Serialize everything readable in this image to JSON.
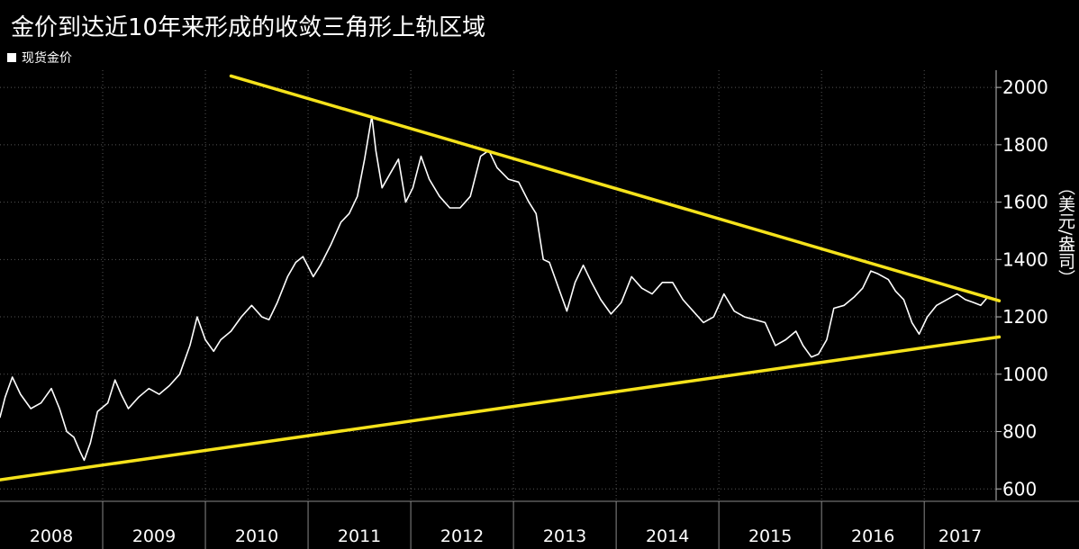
{
  "title": "金价到达近10年来形成的收敛三角形上轨区域",
  "legend": {
    "label": "现货金价",
    "color": "#ffffff"
  },
  "colors": {
    "background": "#000000",
    "price_line": "#ffffff",
    "trend_line": "#f5e21b",
    "grid": "#555555"
  },
  "chart_data": {
    "type": "line",
    "title": "金价到达近10年来形成的收敛三角形上轨区域",
    "xlabel": "",
    "ylabel": "（美元/盎司）",
    "ylim": [
      560,
      2060
    ],
    "xlim": [
      2008.0,
      2017.7
    ],
    "yticks": [
      600,
      800,
      1000,
      1200,
      1400,
      1600,
      1800,
      2000
    ],
    "xcategories": [
      "2008",
      "2009",
      "2010",
      "2011",
      "2012",
      "2013",
      "2014",
      "2015",
      "2016",
      "2017"
    ],
    "grid": true,
    "legend_position": "top-left",
    "series": [
      {
        "name": "现货金价",
        "color": "#ffffff",
        "points": [
          [
            2008.0,
            850
          ],
          [
            2008.05,
            920
          ],
          [
            2008.12,
            990
          ],
          [
            2008.2,
            930
          ],
          [
            2008.3,
            880
          ],
          [
            2008.4,
            900
          ],
          [
            2008.5,
            950
          ],
          [
            2008.58,
            880
          ],
          [
            2008.65,
            800
          ],
          [
            2008.72,
            780
          ],
          [
            2008.78,
            730
          ],
          [
            2008.82,
            700
          ],
          [
            2008.88,
            760
          ],
          [
            2008.95,
            870
          ],
          [
            2009.05,
            900
          ],
          [
            2009.12,
            980
          ],
          [
            2009.18,
            930
          ],
          [
            2009.25,
            880
          ],
          [
            2009.35,
            920
          ],
          [
            2009.45,
            950
          ],
          [
            2009.55,
            930
          ],
          [
            2009.65,
            960
          ],
          [
            2009.75,
            1000
          ],
          [
            2009.85,
            1100
          ],
          [
            2009.92,
            1200
          ],
          [
            2010.0,
            1120
          ],
          [
            2010.08,
            1080
          ],
          [
            2010.15,
            1120
          ],
          [
            2010.25,
            1150
          ],
          [
            2010.35,
            1200
          ],
          [
            2010.45,
            1240
          ],
          [
            2010.55,
            1200
          ],
          [
            2010.62,
            1190
          ],
          [
            2010.7,
            1250
          ],
          [
            2010.8,
            1340
          ],
          [
            2010.88,
            1390
          ],
          [
            2010.95,
            1410
          ],
          [
            2011.05,
            1340
          ],
          [
            2011.12,
            1380
          ],
          [
            2011.22,
            1450
          ],
          [
            2011.32,
            1530
          ],
          [
            2011.4,
            1560
          ],
          [
            2011.48,
            1620
          ],
          [
            2011.55,
            1750
          ],
          [
            2011.62,
            1900
          ],
          [
            2011.66,
            1780
          ],
          [
            2011.72,
            1650
          ],
          [
            2011.8,
            1700
          ],
          [
            2011.88,
            1750
          ],
          [
            2011.95,
            1600
          ],
          [
            2012.02,
            1650
          ],
          [
            2012.1,
            1760
          ],
          [
            2012.18,
            1680
          ],
          [
            2012.28,
            1620
          ],
          [
            2012.38,
            1580
          ],
          [
            2012.48,
            1580
          ],
          [
            2012.58,
            1620
          ],
          [
            2012.68,
            1760
          ],
          [
            2012.76,
            1780
          ],
          [
            2012.84,
            1720
          ],
          [
            2012.95,
            1680
          ],
          [
            2013.05,
            1670
          ],
          [
            2013.15,
            1600
          ],
          [
            2013.22,
            1560
          ],
          [
            2013.29,
            1400
          ],
          [
            2013.35,
            1390
          ],
          [
            2013.45,
            1290
          ],
          [
            2013.52,
            1220
          ],
          [
            2013.6,
            1320
          ],
          [
            2013.68,
            1380
          ],
          [
            2013.76,
            1320
          ],
          [
            2013.85,
            1260
          ],
          [
            2013.95,
            1210
          ],
          [
            2014.05,
            1250
          ],
          [
            2014.15,
            1340
          ],
          [
            2014.25,
            1300
          ],
          [
            2014.35,
            1280
          ],
          [
            2014.45,
            1320
          ],
          [
            2014.55,
            1320
          ],
          [
            2014.65,
            1260
          ],
          [
            2014.75,
            1220
          ],
          [
            2014.85,
            1180
          ],
          [
            2014.95,
            1200
          ],
          [
            2015.05,
            1280
          ],
          [
            2015.15,
            1220
          ],
          [
            2015.25,
            1200
          ],
          [
            2015.35,
            1190
          ],
          [
            2015.45,
            1180
          ],
          [
            2015.55,
            1100
          ],
          [
            2015.65,
            1120
          ],
          [
            2015.75,
            1150
          ],
          [
            2015.82,
            1100
          ],
          [
            2015.9,
            1060
          ],
          [
            2015.97,
            1070
          ],
          [
            2016.05,
            1120
          ],
          [
            2016.12,
            1230
          ],
          [
            2016.22,
            1240
          ],
          [
            2016.32,
            1270
          ],
          [
            2016.4,
            1300
          ],
          [
            2016.48,
            1360
          ],
          [
            2016.55,
            1350
          ],
          [
            2016.65,
            1330
          ],
          [
            2016.72,
            1290
          ],
          [
            2016.8,
            1260
          ],
          [
            2016.88,
            1180
          ],
          [
            2016.95,
            1140
          ],
          [
            2017.03,
            1200
          ],
          [
            2017.12,
            1240
          ],
          [
            2017.22,
            1260
          ],
          [
            2017.32,
            1280
          ],
          [
            2017.4,
            1260
          ],
          [
            2017.48,
            1250
          ],
          [
            2017.55,
            1240
          ],
          [
            2017.62,
            1270
          ]
        ]
      },
      {
        "name": "上轨",
        "color": "#f5e21b",
        "points": [
          [
            2010.25,
            2040
          ],
          [
            2017.73,
            1256
          ]
        ]
      },
      {
        "name": "下轨",
        "color": "#f5e21b",
        "points": [
          [
            2008.0,
            632
          ],
          [
            2017.73,
            1130
          ]
        ]
      }
    ]
  }
}
